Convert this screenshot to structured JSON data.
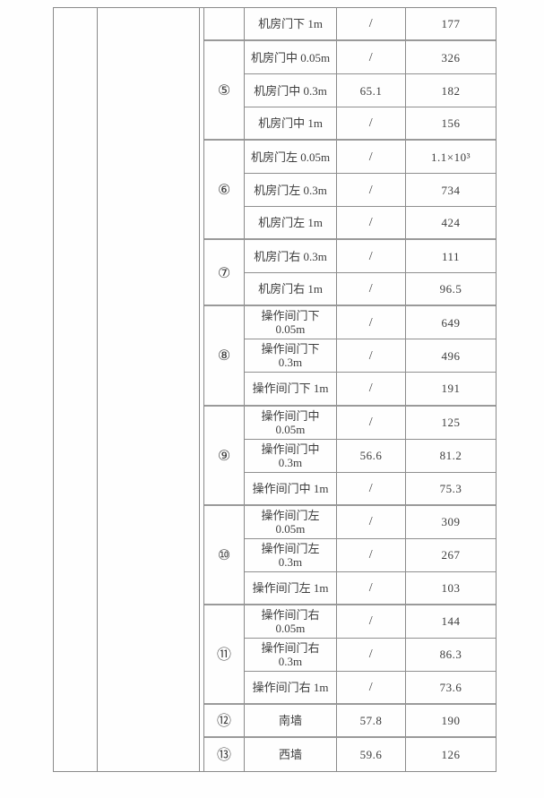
{
  "document": {
    "background": "#fefefe",
    "table": {
      "line_color": "#8a8a8a",
      "heavy_line_color": "#9a9a9a",
      "text_color": "#3d3d3d",
      "left_columns": {
        "col1_text": "",
        "col2_text": ""
      },
      "groups": [
        {
          "num": "",
          "rows": [
            {
              "label": "机房门下 1m",
              "val1": "/",
              "val2": "177"
            }
          ]
        },
        {
          "num": "⑤",
          "rows": [
            {
              "label": "机房门中 0.05m",
              "val1": "/",
              "val2": "326"
            },
            {
              "label": "机房门中  0.3m",
              "val1": "65.1",
              "val2": "182"
            },
            {
              "label": "机房门中 1m",
              "val1": "/",
              "val2": "156"
            }
          ]
        },
        {
          "num": "⑥",
          "rows": [
            {
              "label": "机房门左 0.05m",
              "val1": "/",
              "val2": "1.1×10³"
            },
            {
              "label": "机房门左  0.3m",
              "val1": "/",
              "val2": "734"
            },
            {
              "label": "机房门左 1m",
              "val1": "/",
              "val2": "424"
            }
          ]
        },
        {
          "num": "⑦",
          "rows": [
            {
              "label": "机房门右 0.3m",
              "val1": "/",
              "val2": "111"
            },
            {
              "label": "机房门右 1m",
              "val1": "/",
              "val2": "96.5"
            }
          ]
        },
        {
          "num": "⑧",
          "rows": [
            {
              "label": "操作间门下\n0.05m",
              "val1": "/",
              "val2": "649"
            },
            {
              "label": "操作间门下\n0.3m",
              "val1": "/",
              "val2": "496"
            },
            {
              "label": "操作间门下 1m",
              "val1": "/",
              "val2": "191"
            }
          ]
        },
        {
          "num": "⑨",
          "rows": [
            {
              "label": "操作间门中\n0.05m",
              "val1": "/",
              "val2": "125"
            },
            {
              "label": "操作间门中\n0.3m",
              "val1": "56.6",
              "val2": "81.2"
            },
            {
              "label": "操作间门中 1m",
              "val1": "/",
              "val2": "75.3"
            }
          ]
        },
        {
          "num": "⑩",
          "rows": [
            {
              "label": "操作间门左\n0.05m",
              "val1": "/",
              "val2": "309"
            },
            {
              "label": "操作间门左\n0.3m",
              "val1": "/",
              "val2": "267"
            },
            {
              "label": "操作间门左 1m",
              "val1": "/",
              "val2": "103"
            }
          ]
        },
        {
          "num": "⑪",
          "rows": [
            {
              "label": "操作间门右\n0.05m",
              "val1": "/",
              "val2": "144"
            },
            {
              "label": "操作间门右\n0.3m",
              "val1": "/",
              "val2": "86.3"
            },
            {
              "label": "操作间门右 1m",
              "val1": "/",
              "val2": "73.6"
            }
          ]
        },
        {
          "num": "⑫",
          "rows": [
            {
              "label": "南墙",
              "val1": "57.8",
              "val2": "190"
            }
          ]
        },
        {
          "num": "⑬",
          "rows": [
            {
              "label": "西墙",
              "val1": "59.6",
              "val2": "126"
            }
          ]
        }
      ]
    }
  }
}
